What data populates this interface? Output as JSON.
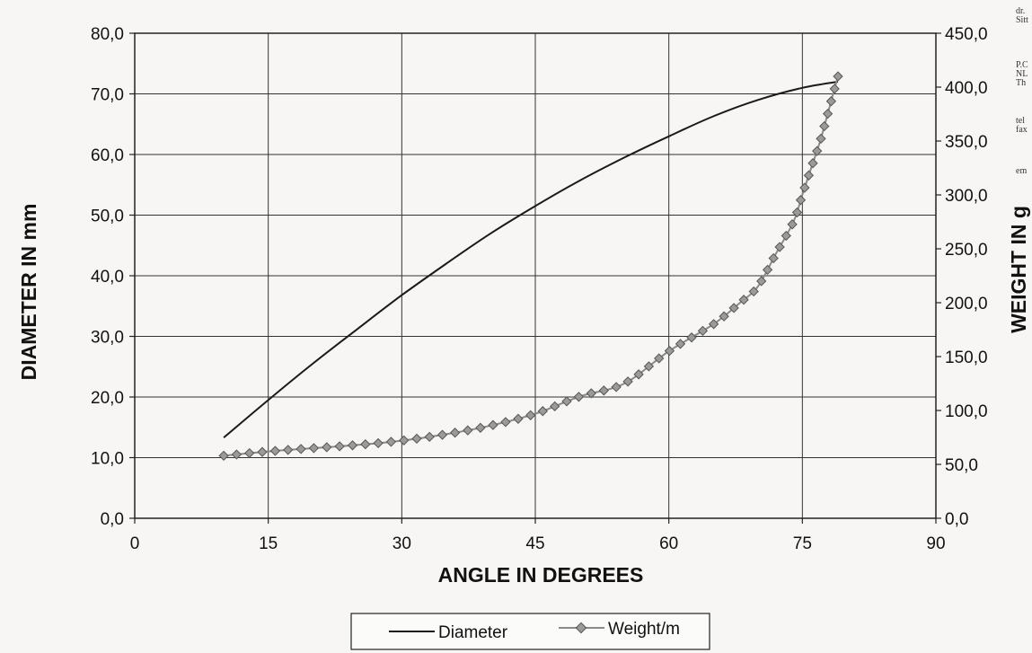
{
  "chart_data": {
    "type": "line",
    "xlabel": "ANGLE IN DEGREES",
    "ylabel": "DIAMETER IN mm",
    "y2label": "WEIGHT IN g",
    "xlim": [
      0,
      90
    ],
    "ylim": [
      0,
      80
    ],
    "y2lim": [
      0,
      450
    ],
    "xticks": [
      "0",
      "15",
      "30",
      "45",
      "60",
      "75",
      "90"
    ],
    "yticks": [
      "0,0",
      "10,0",
      "20,0",
      "30,0",
      "40,0",
      "50,0",
      "60,0",
      "70,0",
      "80,0"
    ],
    "y2ticks": [
      "0,0",
      "50,0",
      "100,0",
      "150,0",
      "200,0",
      "250,0",
      "300,0",
      "350,0",
      "400,0",
      "450,0"
    ],
    "grid": true,
    "legend_position": "bottom",
    "series": [
      {
        "name": "Diameter",
        "axis": "left",
        "color": "#1a1a1a",
        "marker": "none",
        "x": [
          10,
          15,
          20,
          25,
          30,
          35,
          40,
          45,
          50,
          55,
          60,
          65,
          70,
          75,
          79
        ],
        "values": [
          13.3,
          19.5,
          25.5,
          31.2,
          36.8,
          42.0,
          47.0,
          51.5,
          55.7,
          59.5,
          63.0,
          66.3,
          69.0,
          71.0,
          72.0
        ]
      },
      {
        "name": "Weight/m",
        "axis": "right",
        "color": "#8a8a8a",
        "marker": "diamond",
        "x": [
          10,
          15,
          20,
          25,
          30,
          35,
          40,
          45,
          50,
          55,
          60,
          65,
          68,
          70,
          72,
          74,
          75,
          76,
          77,
          78,
          79
        ],
        "values": [
          58,
          62,
          65,
          68,
          72,
          78,
          86,
          97,
          113,
          125,
          155,
          180,
          200,
          215,
          245,
          275,
          300,
          325,
          350,
          380,
          410
        ]
      }
    ]
  },
  "side_notes": [
    "dr.\nSitt",
    "P.C\nNL\nTh",
    "tel\nfax",
    "em"
  ]
}
